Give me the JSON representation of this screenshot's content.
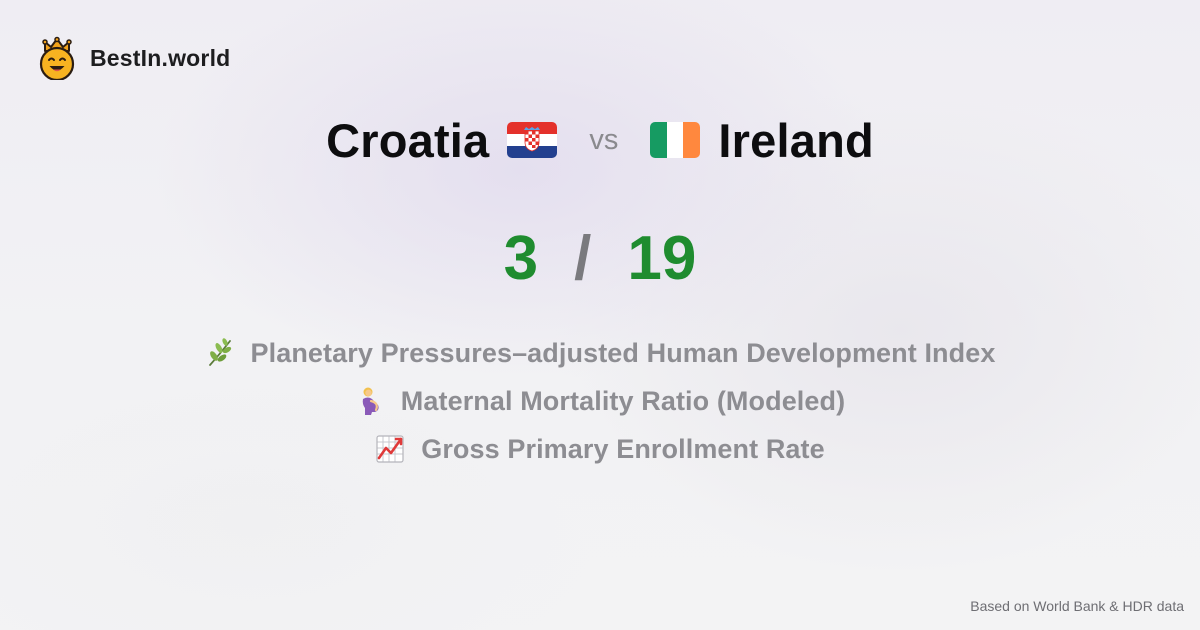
{
  "brand": {
    "name": "BestIn.world"
  },
  "comparison": {
    "country_a": "Croatia",
    "vs_label": "vs",
    "country_b": "Ireland",
    "score_a": "3",
    "separator": "/",
    "score_b": "19"
  },
  "metrics": [
    {
      "icon": "herb-icon",
      "label": "Planetary Pressures–adjusted Human Development Index"
    },
    {
      "icon": "pregnant-woman-icon",
      "label": "Maternal Mortality Ratio (Modeled)"
    },
    {
      "icon": "chart-increasing-icon",
      "label": "Gross Primary Enrollment Rate"
    }
  ],
  "footer": {
    "source": "Based on World Bank & HDR data"
  },
  "colors": {
    "score_green": "#1f8c2f",
    "muted_text": "#8d8d92",
    "title_text": "#0d0d0f"
  }
}
